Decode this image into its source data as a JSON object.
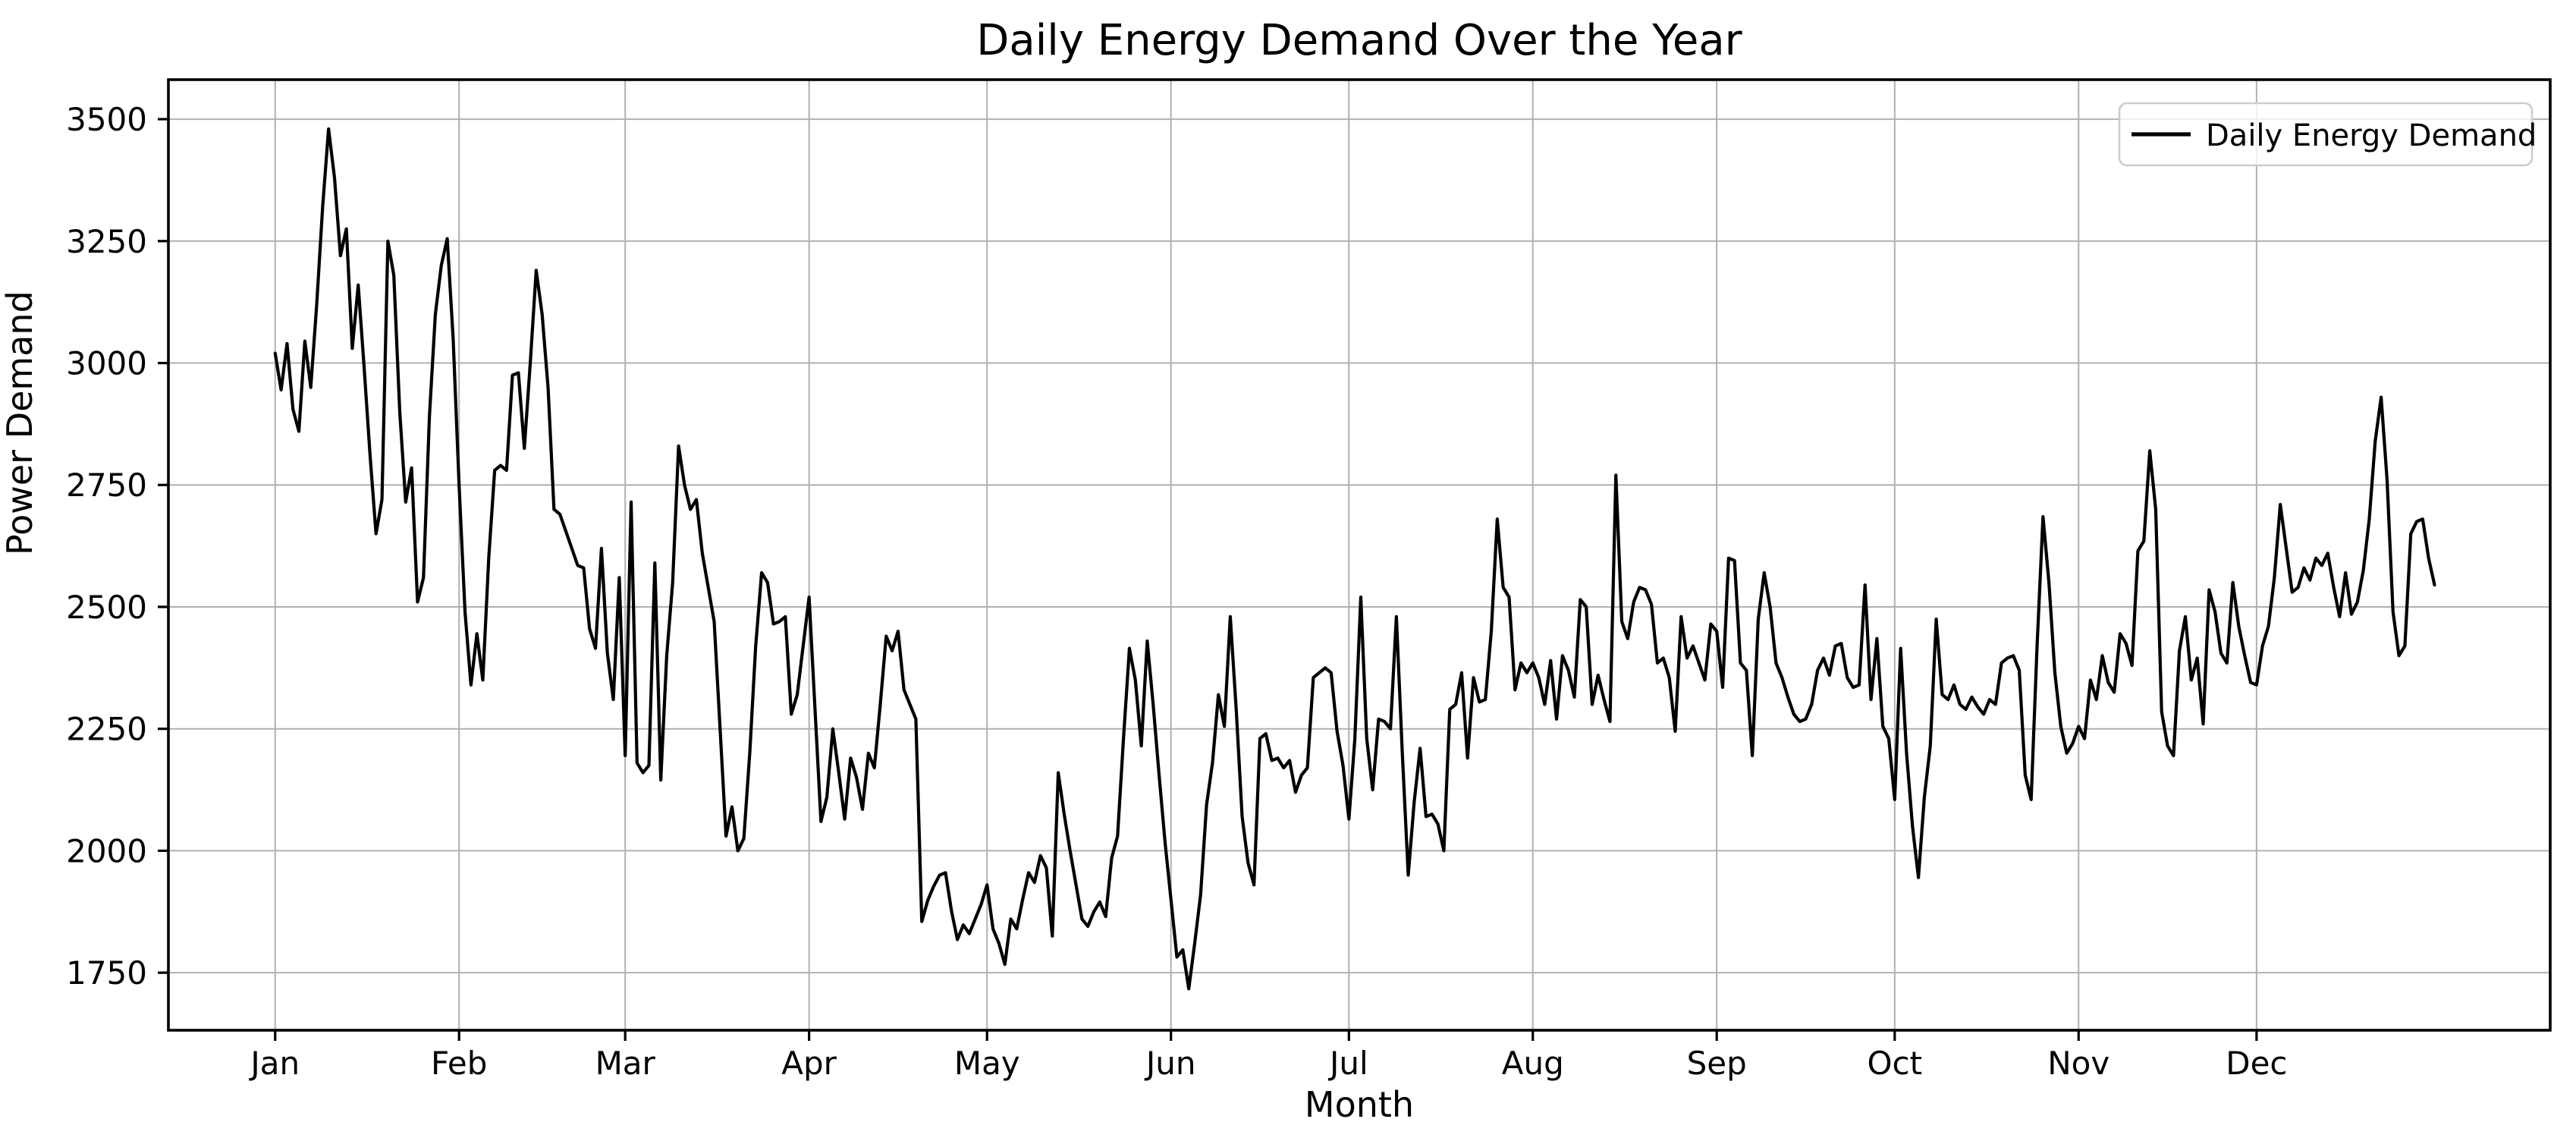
{
  "figure": {
    "background": "#ffffff"
  },
  "chart_data": {
    "type": "line",
    "title": "Daily Energy Demand Over the Year",
    "xlabel": "Month",
    "ylabel": "Power Demand",
    "grid": true,
    "grid_color": "#b0b0b0",
    "spine_color": "#000000",
    "line_color": "#000000",
    "legend": {
      "position": "upper right",
      "entries": [
        {
          "label": "Daily Energy Demand",
          "color": "#000000"
        }
      ]
    },
    "x_unit": "day of year",
    "x_tick_labels": [
      "Jan",
      "Feb",
      "Mar",
      "Apr",
      "May",
      "Jun",
      "Jul",
      "Aug",
      "Sep",
      "Oct",
      "Nov",
      "Dec"
    ],
    "x_tick_days": [
      1,
      32,
      60,
      91,
      121,
      152,
      182,
      213,
      244,
      274,
      305,
      335
    ],
    "y_ticks": [
      1750,
      2000,
      2250,
      2500,
      2750,
      3000,
      3250,
      3500
    ],
    "xlim_days": [
      -17,
      384.5
    ],
    "ylim": [
      1632,
      3581
    ],
    "series": [
      {
        "name": "Daily Energy Demand",
        "start_day": 1,
        "values": [
          3020,
          2945,
          3040,
          2905,
          2860,
          3045,
          2950,
          3120,
          3320,
          3480,
          3380,
          3220,
          3275,
          3030,
          3160,
          2990,
          2810,
          2650,
          2720,
          3250,
          3180,
          2900,
          2715,
          2785,
          2510,
          2560,
          2890,
          3100,
          3200,
          3255,
          3050,
          2750,
          2490,
          2340,
          2445,
          2350,
          2600,
          2780,
          2790,
          2780,
          2975,
          2980,
          2825,
          3000,
          3190,
          3100,
          2950,
          2700,
          2690,
          2655,
          2620,
          2585,
          2580,
          2455,
          2415,
          2620,
          2405,
          2310,
          2560,
          2195,
          2715,
          2180,
          2160,
          2175,
          2590,
          2145,
          2400,
          2550,
          2830,
          2750,
          2700,
          2720,
          2610,
          2540,
          2470,
          2250,
          2030,
          2090,
          2000,
          2025,
          2200,
          2420,
          2570,
          2550,
          2465,
          2470,
          2480,
          2280,
          2320,
          2420,
          2520,
          2290,
          2060,
          2110,
          2250,
          2160,
          2065,
          2190,
          2150,
          2085,
          2200,
          2170,
          2300,
          2440,
          2410,
          2450,
          2330,
          2300,
          2270,
          1855,
          1898,
          1927,
          1950,
          1955,
          1877,
          1818,
          1848,
          1830,
          1860,
          1890,
          1930,
          1840,
          1810,
          1767,
          1860,
          1840,
          1900,
          1955,
          1935,
          1990,
          1965,
          1825,
          2160,
          2075,
          2000,
          1930,
          1860,
          1845,
          1875,
          1895,
          1865,
          1985,
          2030,
          2230,
          2415,
          2350,
          2215,
          2430,
          2300,
          2155,
          2018,
          1900,
          1782,
          1797,
          1717,
          1810,
          1910,
          2094,
          2180,
          2320,
          2255,
          2480,
          2290,
          2070,
          1975,
          1930,
          2230,
          2240,
          2185,
          2190,
          2170,
          2185,
          2120,
          2155,
          2170,
          2355,
          2365,
          2375,
          2365,
          2245,
          2175,
          2065,
          2230,
          2520,
          2230,
          2125,
          2270,
          2265,
          2250,
          2480,
          2200,
          1950,
          2100,
          2210,
          2070,
          2075,
          2055,
          2000,
          2290,
          2300,
          2365,
          2190,
          2355,
          2305,
          2310,
          2450,
          2680,
          2540,
          2520,
          2330,
          2385,
          2365,
          2385,
          2355,
          2300,
          2390,
          2270,
          2400,
          2370,
          2315,
          2515,
          2500,
          2300,
          2360,
          2310,
          2265,
          2770,
          2470,
          2435,
          2510,
          2540,
          2535,
          2505,
          2385,
          2395,
          2355,
          2245,
          2480,
          2395,
          2420,
          2385,
          2350,
          2465,
          2450,
          2335,
          2600,
          2595,
          2385,
          2370,
          2195,
          2475,
          2570,
          2500,
          2385,
          2355,
          2315,
          2280,
          2265,
          2270,
          2300,
          2370,
          2395,
          2360,
          2420,
          2425,
          2355,
          2335,
          2340,
          2545,
          2310,
          2435,
          2255,
          2230,
          2105,
          2415,
          2200,
          2050,
          1945,
          2110,
          2215,
          2475,
          2320,
          2310,
          2340,
          2300,
          2290,
          2315,
          2295,
          2280,
          2310,
          2300,
          2385,
          2395,
          2400,
          2370,
          2155,
          2105,
          2420,
          2685,
          2550,
          2365,
          2255,
          2200,
          2220,
          2255,
          2230,
          2350,
          2310,
          2400,
          2345,
          2325,
          2445,
          2425,
          2380,
          2615,
          2635,
          2820,
          2700,
          2285,
          2215,
          2195,
          2410,
          2480,
          2350,
          2395,
          2260,
          2535,
          2490,
          2405,
          2385,
          2550,
          2460,
          2400,
          2345,
          2340,
          2420,
          2460,
          2560,
          2710,
          2620,
          2530,
          2540,
          2580,
          2555,
          2600,
          2585,
          2610,
          2540,
          2480,
          2570,
          2485,
          2510,
          2575,
          2680,
          2840,
          2930,
          2760,
          2490,
          2400,
          2420,
          2650,
          2675,
          2680,
          2600,
          2545
        ]
      }
    ]
  }
}
